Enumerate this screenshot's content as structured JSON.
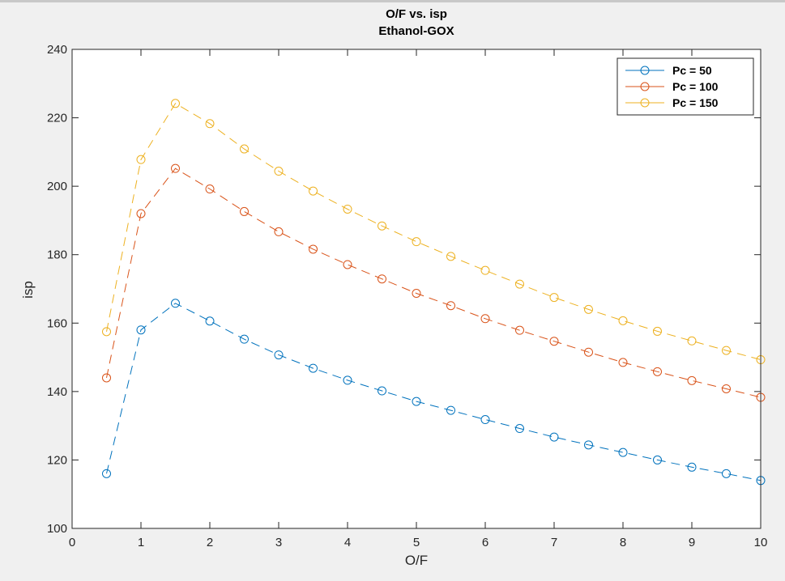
{
  "chart_data": {
    "type": "line",
    "title": "O/F vs. isp",
    "subtitle": "Ethanol-GOX",
    "xlabel": "O/F",
    "ylabel": "isp",
    "xlim": [
      0,
      10
    ],
    "ylim": [
      100,
      240
    ],
    "xticks": [
      0,
      1,
      2,
      3,
      4,
      5,
      6,
      7,
      8,
      9,
      10
    ],
    "yticks": [
      100,
      120,
      140,
      160,
      180,
      200,
      220,
      240
    ],
    "grid": false,
    "legend_position": "top-right",
    "line_style": "dashed",
    "marker": "circle",
    "x": [
      0.5,
      1,
      1.5,
      2,
      2.5,
      3,
      3.5,
      4,
      4.5,
      5,
      5.5,
      6,
      6.5,
      7,
      7.5,
      8,
      8.5,
      9,
      9.5,
      10
    ],
    "series": [
      {
        "name": "Pc = 50",
        "color": "#0072BD",
        "values": [
          116,
          158,
          165.8,
          160.6,
          155.3,
          150.7,
          146.8,
          143.3,
          140.2,
          137.1,
          134.5,
          131.8,
          129.2,
          126.7,
          124.4,
          122.2,
          120.0,
          117.9,
          116.0,
          114.0
        ]
      },
      {
        "name": "Pc = 100",
        "color": "#D95319",
        "values": [
          144,
          192,
          205.2,
          199.2,
          192.6,
          186.7,
          181.6,
          177.1,
          172.9,
          168.7,
          165.1,
          161.3,
          157.9,
          154.7,
          151.5,
          148.5,
          145.8,
          143.2,
          140.8,
          138.3
        ]
      },
      {
        "name": "Pc = 150",
        "color": "#EDB120",
        "values": [
          157.5,
          207.8,
          224.2,
          218.3,
          210.9,
          204.4,
          198.6,
          193.3,
          188.4,
          183.8,
          179.5,
          175.4,
          171.4,
          167.5,
          164.0,
          160.7,
          157.6,
          154.8,
          152.0,
          149.3
        ]
      }
    ]
  }
}
